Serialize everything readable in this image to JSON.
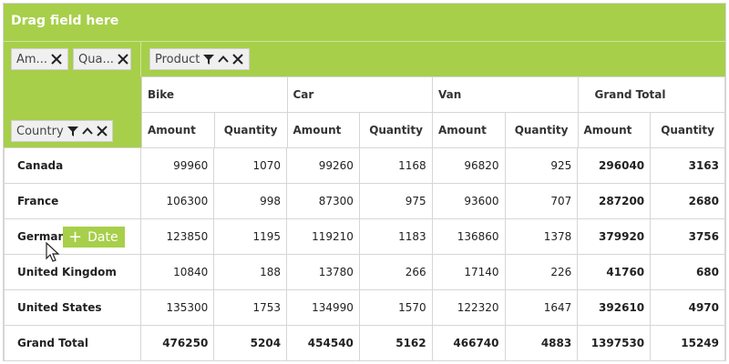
{
  "drop_area": {
    "label": "Drag field here"
  },
  "value_pills": [
    {
      "label": "Am..."
    },
    {
      "label": "Qua..."
    }
  ],
  "column_pill": {
    "label": "Product"
  },
  "row_pill": {
    "label": "Country"
  },
  "products": [
    "Bike",
    "Car",
    "Van",
    "Grand Total"
  ],
  "measures": {
    "amount": "Amount",
    "quantity": "Quantity"
  },
  "rows": [
    {
      "country": "Canada",
      "values": [
        "99960",
        "1070",
        "99260",
        "1168",
        "96820",
        "925",
        "296040",
        "3163"
      ]
    },
    {
      "country": "France",
      "values": [
        "106300",
        "998",
        "87300",
        "975",
        "93600",
        "707",
        "287200",
        "2680"
      ]
    },
    {
      "country": "Germany",
      "values": [
        "123850",
        "1195",
        "119210",
        "1183",
        "136860",
        "1378",
        "379920",
        "3756"
      ]
    },
    {
      "country": "United Kingdom",
      "values": [
        "10840",
        "188",
        "13780",
        "266",
        "17140",
        "226",
        "41760",
        "680"
      ]
    },
    {
      "country": "United States",
      "values": [
        "135300",
        "1753",
        "134990",
        "1570",
        "122320",
        "1647",
        "392610",
        "4970"
      ]
    }
  ],
  "grand_total": {
    "label": "Grand Total",
    "values": [
      "476250",
      "5204",
      "454540",
      "5162",
      "466740",
      "4883",
      "1397530",
      "15249"
    ]
  },
  "drag_chip": {
    "label": "Date"
  },
  "colors": {
    "accent": "#a7cf4a",
    "border": "#d6d6d6"
  }
}
